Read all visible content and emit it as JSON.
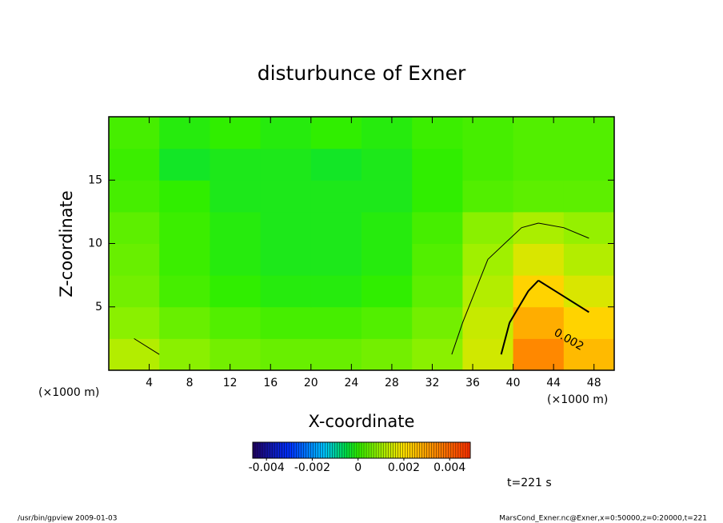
{
  "chart_data": {
    "type": "contour",
    "title": "disturbunce of Exner",
    "x_label": "X-coordinate",
    "y_label": "Z-coordinate",
    "x_unit_left": "(×1000 m)",
    "x_unit_right": "(×1000 m)",
    "time_label": "t=221 s",
    "footer_left": "/usr/bin/gpview  2009-01-03",
    "footer_right": "MarsCond_Exner.nc@Exner,x=0:50000,z=0:20000,t=221",
    "xlim": [
      0,
      50
    ],
    "ylim": [
      0,
      20
    ],
    "xticks": [
      4,
      8,
      12,
      16,
      20,
      24,
      28,
      32,
      36,
      40,
      44,
      48
    ],
    "yticks": [
      5,
      10,
      15
    ],
    "x": [
      2.5,
      7.5,
      12.5,
      17.5,
      22.5,
      27.5,
      32.5,
      37.5,
      42.5,
      47.5
    ],
    "y": [
      1.25,
      3.75,
      6.25,
      8.75,
      11.25,
      13.75,
      16.25,
      18.75
    ],
    "values": [
      [
        0.0012,
        0.0008,
        0.0006,
        0.0005,
        0.0005,
        0.0006,
        0.0008,
        0.0015,
        0.0034,
        0.0026
      ],
      [
        0.0008,
        0.0005,
        0.0003,
        0.0002,
        0.0002,
        0.0003,
        0.0006,
        0.0014,
        0.0028,
        0.0022
      ],
      [
        0.0006,
        0.0002,
        0,
        -0.0001,
        -0.0001,
        0,
        0.0004,
        0.0012,
        0.0022,
        0.0016
      ],
      [
        0.0005,
        0.0001,
        -0.0001,
        -0.0002,
        -0.0002,
        -0.0001,
        0.0003,
        0.001,
        0.0016,
        0.0012
      ],
      [
        0.0004,
        0.0001,
        -0.0001,
        -0.0002,
        -0.0002,
        -0.0001,
        0.0002,
        0.0008,
        0.0011,
        0.0009
      ],
      [
        0.0002,
        0,
        -0.0002,
        -0.0002,
        -0.0002,
        -0.0002,
        0,
        0.0003,
        0.0004,
        0.0004
      ],
      [
        0.0001,
        -0.0003,
        -0.0002,
        -0.0002,
        -0.0003,
        -0.0002,
        0,
        0.0002,
        0.0003,
        0.0003
      ],
      [
        0.0002,
        -0.0001,
        0,
        -0.0001,
        0,
        -0.0001,
        0.0001,
        0.0002,
        0.0003,
        0.0003
      ]
    ],
    "contour_levels": [
      0.001,
      0.002
    ],
    "clim": [
      -0.0046,
      0.0049
    ],
    "cticks": [
      -0.004,
      -0.002,
      0,
      0.002,
      0.004
    ],
    "colormap": [
      {
        "value": -0.0046,
        "color": "#200060"
      },
      {
        "value": -0.003,
        "color": "#0030ff"
      },
      {
        "value": -0.0015,
        "color": "#00c0ff"
      },
      {
        "value": -0.0005,
        "color": "#00e040"
      },
      {
        "value": 0,
        "color": "#30ee00"
      },
      {
        "value": 0.001,
        "color": "#a0f000"
      },
      {
        "value": 0.002,
        "color": "#ffe000"
      },
      {
        "value": 0.003,
        "color": "#ffa000"
      },
      {
        "value": 0.0049,
        "color": "#ff3000"
      }
    ]
  }
}
